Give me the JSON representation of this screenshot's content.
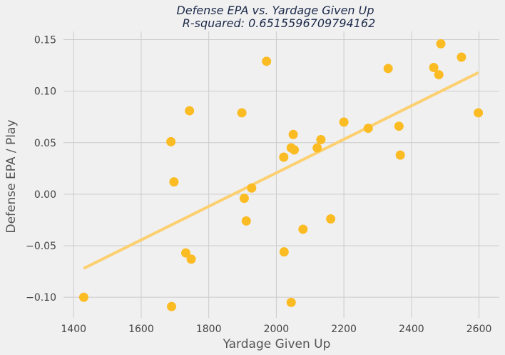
{
  "chart_data": {
    "type": "scatter",
    "title": "Defense EPA vs. Yardage Given Up",
    "subtitle": "R-squared: 0.6515596709794162",
    "xlabel": "Yardage Given Up",
    "ylabel": "Defense EPA / Play",
    "xlim": [
      1370,
      2660
    ],
    "ylim": [
      -0.12,
      0.158
    ],
    "xticks": [
      1400,
      1600,
      1800,
      2000,
      2200,
      2400,
      2600
    ],
    "yticks": [
      -0.1,
      -0.05,
      0.0,
      0.05,
      0.1,
      0.15
    ],
    "xtick_labels": [
      "1400",
      "1600",
      "1800",
      "2000",
      "2200",
      "2400",
      "2600"
    ],
    "ytick_labels": [
      "−0.10",
      "−0.05",
      "0.00",
      "0.05",
      "0.10",
      "0.15"
    ],
    "grid": true,
    "point_color": "#fbbb23",
    "line_color": "#fcd070",
    "points": [
      {
        "x": 1430,
        "y": -0.1
      },
      {
        "x": 1688,
        "y": 0.051
      },
      {
        "x": 1697,
        "y": 0.012
      },
      {
        "x": 1690,
        "y": -0.109
      },
      {
        "x": 1743,
        "y": 0.081
      },
      {
        "x": 1732,
        "y": -0.057
      },
      {
        "x": 1748,
        "y": -0.063
      },
      {
        "x": 1898,
        "y": 0.079
      },
      {
        "x": 1905,
        "y": -0.004
      },
      {
        "x": 1911,
        "y": -0.026
      },
      {
        "x": 1927,
        "y": 0.006
      },
      {
        "x": 1971,
        "y": 0.129
      },
      {
        "x": 2022,
        "y": 0.036
      },
      {
        "x": 2023,
        "y": -0.056
      },
      {
        "x": 2044,
        "y": 0.045
      },
      {
        "x": 2053,
        "y": 0.043
      },
      {
        "x": 2050,
        "y": 0.058
      },
      {
        "x": 2044,
        "y": -0.105
      },
      {
        "x": 2079,
        "y": -0.034
      },
      {
        "x": 2121,
        "y": 0.045
      },
      {
        "x": 2132,
        "y": 0.053
      },
      {
        "x": 2161,
        "y": -0.024
      },
      {
        "x": 2200,
        "y": 0.07
      },
      {
        "x": 2272,
        "y": 0.064
      },
      {
        "x": 2331,
        "y": 0.122
      },
      {
        "x": 2363,
        "y": 0.066
      },
      {
        "x": 2367,
        "y": 0.038
      },
      {
        "x": 2466,
        "y": 0.123
      },
      {
        "x": 2481,
        "y": 0.116
      },
      {
        "x": 2487,
        "y": 0.146
      },
      {
        "x": 2548,
        "y": 0.133
      },
      {
        "x": 2598,
        "y": 0.079
      }
    ],
    "fit_line": {
      "x": [
        1430,
        2598
      ],
      "y": [
        -0.072,
        0.118
      ]
    }
  }
}
